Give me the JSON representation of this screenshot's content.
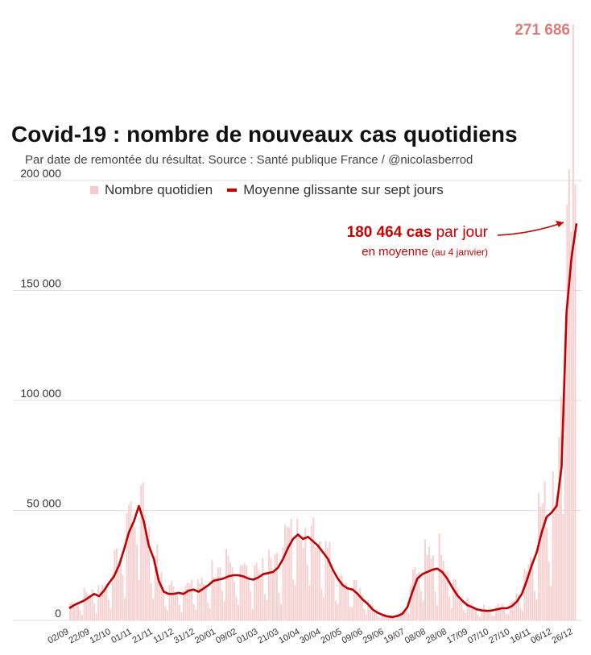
{
  "title": "Covid-19 : nombre de nouveaux cas quotidiens",
  "subtitle": "Par date de remontée du résultat. Source : Santé publique France / @nicolasberrod",
  "peak_label": "271 686",
  "legend": {
    "bars": "Nombre quotidien",
    "line": "Moyenne glissante sur sept jours"
  },
  "annotation": {
    "value": "180 464 cas",
    "line1_rest": " par jour",
    "line2": "en moyenne ",
    "line2_small": "(au 4 janvier)"
  },
  "colors": {
    "bars": "#f7c9c9",
    "line": "#c00000",
    "grid": "#dddddd",
    "peak": "#e07b7b"
  },
  "chart_data": {
    "type": "bar",
    "title": "Covid-19 : nombre de nouveaux cas quotidiens",
    "ylim": [
      0,
      200000
    ],
    "y_ticks": [
      0,
      50000,
      100000,
      150000,
      200000
    ],
    "y_tick_labels": [
      "0",
      "50 000",
      "100 000",
      "150 000",
      "200 000"
    ],
    "x_tick_labels": [
      "02/09",
      "22/09",
      "12/10",
      "01/11",
      "21/11",
      "11/12",
      "31/12",
      "20/01",
      "09/02",
      "01/03",
      "21/03",
      "10/04",
      "30/04",
      "20/05",
      "09/06",
      "29/06",
      "19/07",
      "08/08",
      "28/08",
      "17/09",
      "07/10",
      "27/10",
      "16/11",
      "06/12",
      "26/12"
    ],
    "grid": true,
    "legend_position": "top",
    "series": [
      {
        "name": "Moyenne glissante sur sept jours",
        "kind": "line",
        "days_per_point": 5,
        "values": [
          5500,
          7000,
          8000,
          9000,
          10500,
          12000,
          11000,
          13500,
          17000,
          20000,
          25000,
          32000,
          40000,
          45000,
          52000,
          45000,
          34000,
          28000,
          18000,
          13000,
          12000,
          12000,
          12500,
          12000,
          13500,
          14000,
          13000,
          14500,
          16000,
          18000,
          18500,
          19000,
          20000,
          20500,
          20500,
          20000,
          19000,
          18500,
          19500,
          21000,
          21500,
          22000,
          24000,
          28000,
          33000,
          37000,
          39000,
          37000,
          38000,
          36000,
          34000,
          31000,
          28000,
          23000,
          19000,
          16000,
          14500,
          14000,
          12000,
          9500,
          7500,
          5000,
          3500,
          2500,
          1800,
          1500,
          2000,
          3000,
          6000,
          13000,
          19000,
          21000,
          22000,
          23000,
          23500,
          22000,
          19000,
          15000,
          11500,
          9000,
          7000,
          6000,
          5000,
          4500,
          4300,
          4500,
          5000,
          5500,
          5500,
          6500,
          8500,
          12000,
          18000,
          25000,
          31000,
          40000,
          47000,
          49000,
          52000,
          70000,
          140000,
          165000,
          180464
        ]
      },
      {
        "name": "Nombre quotidien",
        "kind": "bar",
        "annotated_peak": 271686
      }
    ]
  }
}
